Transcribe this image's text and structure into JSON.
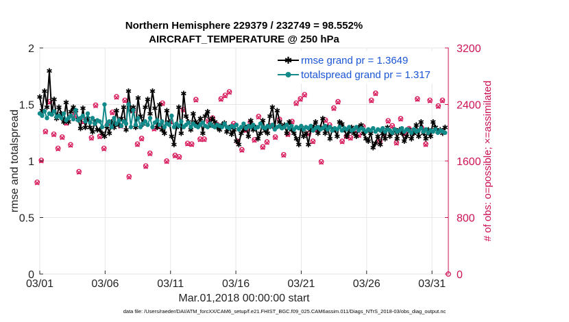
{
  "chart_data": {
    "type": "line",
    "title_line1": "Northern Hemisphere 229379 / 232749 = 98.552%",
    "title_line2": "AIRCRAFT_TEMPERATURE @ 250 hPa",
    "xlabel": "Mar.01,2018 00:00:00 start",
    "ylabel_left": "rmse and totalspread",
    "ylabel_right": "# of obs: o=possible; ×=assimilated",
    "footnote": "data file: /Users/raeder/DAI/ATM_forcXX/CAM6_setup/f.e21.FHIST_BGC.f09_025.CAM6assim.011/Diags_NTrS_2018-03/obs_diag_output.nc",
    "x_tick_labels": [
      "03/01",
      "03/06",
      "03/11",
      "03/16",
      "03/21",
      "03/26",
      "03/31"
    ],
    "x_tick_days": [
      0,
      5,
      10,
      15,
      20,
      25,
      30
    ],
    "xlim": [
      0,
      31.25
    ],
    "ylim_left": [
      0,
      2
    ],
    "y_left_ticks": [
      "0",
      "0.5",
      "1",
      "1.5",
      "2"
    ],
    "ylim_right": [
      0,
      3200
    ],
    "y_right_ticks": [
      "0",
      "800",
      "1600",
      "2400",
      "3200"
    ],
    "colors": {
      "rmse": "#000000",
      "spread": "#138a8a",
      "obs": "#d81a5c",
      "legend_text": "#1a55d6",
      "right_axis": "#cc1155"
    },
    "series": [
      {
        "name": "rmse grand pr = 1.3649",
        "marker": "asterisk",
        "values": [
          1.57,
          1.45,
          1.62,
          1.48,
          1.8,
          1.42,
          1.55,
          1.38,
          1.48,
          1.42,
          1.35,
          1.52,
          1.35,
          1.44,
          1.48,
          1.45,
          1.37,
          1.29,
          1.47,
          1.3,
          1.38,
          1.3,
          1.26,
          1.35,
          1.28,
          1.28,
          1.25,
          1.22,
          1.31,
          1.25,
          1.35,
          1.3,
          1.45,
          1.32,
          1.38,
          1.48,
          1.28,
          1.62,
          1.45,
          1.48,
          1.3,
          1.56,
          1.4,
          1.33,
          1.48,
          1.55,
          1.42,
          1.62,
          1.47,
          1.3,
          1.5,
          1.28,
          1.25,
          1.45,
          1.35,
          1.22,
          1.15,
          1.3,
          1.48,
          1.25,
          1.6,
          1.4,
          1.35,
          1.28,
          1.42,
          1.35,
          1.32,
          1.38,
          1.25,
          1.4,
          1.44,
          1.32,
          1.38,
          1.35,
          1.3,
          1.28,
          1.32,
          1.34,
          1.26,
          1.3,
          1.24,
          1.28,
          1.18,
          1.15,
          1.25,
          1.28,
          1.3,
          1.22,
          1.36,
          1.28,
          1.3,
          1.2,
          1.25,
          1.36,
          1.27,
          1.25,
          1.4,
          1.48,
          1.3,
          1.45,
          1.35,
          1.3,
          1.32,
          1.25,
          1.35,
          1.28,
          1.25,
          1.2,
          1.15,
          1.3,
          1.22,
          1.25,
          1.15,
          1.28,
          1.3,
          1.35,
          1.25,
          1.3,
          1.38,
          1.25,
          1.3,
          1.2,
          1.28,
          1.28,
          1.22,
          1.35,
          1.33,
          1.28,
          1.22,
          1.26,
          1.3,
          1.25,
          1.22,
          1.3,
          1.32,
          1.25,
          1.2,
          1.18,
          1.25,
          1.12,
          1.16,
          1.22,
          1.15,
          1.25,
          1.2,
          1.3,
          1.22,
          1.25,
          1.28,
          1.2,
          1.28,
          1.25,
          1.18,
          1.22,
          1.28,
          1.2,
          1.25,
          1.32,
          1.22,
          1.35,
          1.25,
          1.2,
          1.28,
          1.22,
          1.35,
          1.3,
          1.26,
          1.28,
          1.25,
          1.3
        ]
      },
      {
        "name": "totalspread grand pr = 1.317",
        "marker": "dot",
        "values": [
          1.42,
          1.4,
          1.44,
          1.38,
          1.42,
          1.41,
          1.44,
          1.39,
          1.4,
          1.38,
          1.42,
          1.36,
          1.38,
          1.4,
          1.37,
          1.45,
          1.36,
          1.38,
          1.4,
          1.35,
          1.42,
          1.34,
          1.38,
          1.33,
          1.36,
          1.35,
          1.3,
          1.5,
          1.32,
          1.35,
          1.3,
          1.38,
          1.33,
          1.36,
          1.31,
          1.35,
          1.33,
          1.5,
          1.3,
          1.45,
          1.32,
          1.38,
          1.3,
          1.33,
          1.35,
          1.32,
          1.38,
          1.3,
          1.34,
          1.36,
          1.32,
          1.35,
          1.3,
          1.33,
          1.32,
          1.4,
          1.3,
          1.33,
          1.31,
          1.35,
          1.3,
          1.32,
          1.34,
          1.3,
          1.33,
          1.31,
          1.3,
          1.32,
          1.34,
          1.31,
          1.3,
          1.33,
          1.31,
          1.3,
          1.32,
          1.31,
          1.3,
          1.33,
          1.3,
          1.29,
          1.31,
          1.3,
          1.32,
          1.28,
          1.3,
          1.33,
          1.29,
          1.31,
          1.3,
          1.32,
          1.29,
          1.3,
          1.33,
          1.3,
          1.29,
          1.31,
          1.3,
          1.32,
          1.28,
          1.3,
          1.31,
          1.29,
          1.3,
          1.32,
          1.29,
          1.31,
          1.28,
          1.3,
          1.29,
          1.31,
          1.28,
          1.3,
          1.29,
          1.31,
          1.27,
          1.29,
          1.3,
          1.28,
          1.29,
          1.31,
          1.28,
          1.3,
          1.27,
          1.29,
          1.28,
          1.3,
          1.27,
          1.29,
          1.28,
          1.3,
          1.27,
          1.28,
          1.3,
          1.27,
          1.29,
          1.28,
          1.26,
          1.28,
          1.27,
          1.29,
          1.26,
          1.28,
          1.27,
          1.29,
          1.26,
          1.28,
          1.27,
          1.25,
          1.28,
          1.26,
          1.27,
          1.29,
          1.26,
          1.28,
          1.27,
          1.25,
          1.28,
          1.26,
          1.27,
          1.29,
          1.26,
          1.28,
          1.25,
          1.27,
          1.26,
          1.28,
          1.25,
          1.27,
          1.26,
          1.25
        ]
      }
    ],
    "obs_possible": [
      1300,
      1610,
      2020,
      2440,
      1980,
      1780,
      1940,
      2140,
      1830,
      2250,
      1450,
      2160,
      2190,
      1930,
      2390,
      1950,
      1780,
      2140,
      2290,
      2510,
      2100,
      2460,
      1380,
      2320,
      1840,
      1920,
      1530,
      1710,
      2060,
      2090,
      2420,
      1600,
      2160,
      1680,
      1660,
      2330,
      1850,
      1840,
      2470,
      1910,
      1910,
      2170,
      2210,
      2120,
      2480,
      2530,
      2580,
      2130,
      1880,
      1760,
      2040,
      2150,
      1900,
      2230,
      1800,
      1870,
      2100,
      1940,
      2190,
      1690,
      1980,
      2160,
      2420,
      2480,
      2540,
      1990,
      1880,
      2050,
      1590,
      2180,
      2110,
      2350,
      2440,
      1880,
      1950,
      1930,
      2040,
      1970,
      2090,
      2850,
      2460,
      2560,
      1880,
      1980,
      2170,
      2100,
      1860,
      2200,
      1990,
      2060,
      2010,
      2480,
      2070,
      1840,
      2460,
      2850,
      2380,
      2460
    ],
    "obs_assimilated": [
      1290,
      1600,
      2010,
      2430,
      1970,
      1770,
      1930,
      2130,
      1820,
      2240,
      1440,
      2150,
      2180,
      1920,
      2380,
      1940,
      1770,
      2130,
      2280,
      2500,
      2090,
      2450,
      1370,
      2310,
      1830,
      1910,
      1520,
      1700,
      2050,
      2080,
      2410,
      1590,
      2150,
      1670,
      1650,
      2320,
      1840,
      1830,
      2460,
      1900,
      1900,
      2160,
      2200,
      2110,
      2470,
      2520,
      2570,
      2120,
      1870,
      1750,
      2030,
      2140,
      1890,
      2220,
      1790,
      1860,
      2090,
      1930,
      2180,
      1680,
      1970,
      2150,
      2410,
      2470,
      2530,
      1980,
      1870,
      2040,
      1580,
      2170,
      2100,
      2340,
      2430,
      1870,
      1940,
      1920,
      2030,
      1960,
      2080,
      2840,
      2450,
      2550,
      1870,
      1970,
      2160,
      2090,
      1850,
      2190,
      1980,
      2050,
      2000,
      2470,
      2060,
      1830,
      2450,
      2840,
      2370,
      2450
    ],
    "legend": [
      "rmse grand pr = 1.3649",
      "totalspread grand pr = 1.317"
    ]
  }
}
